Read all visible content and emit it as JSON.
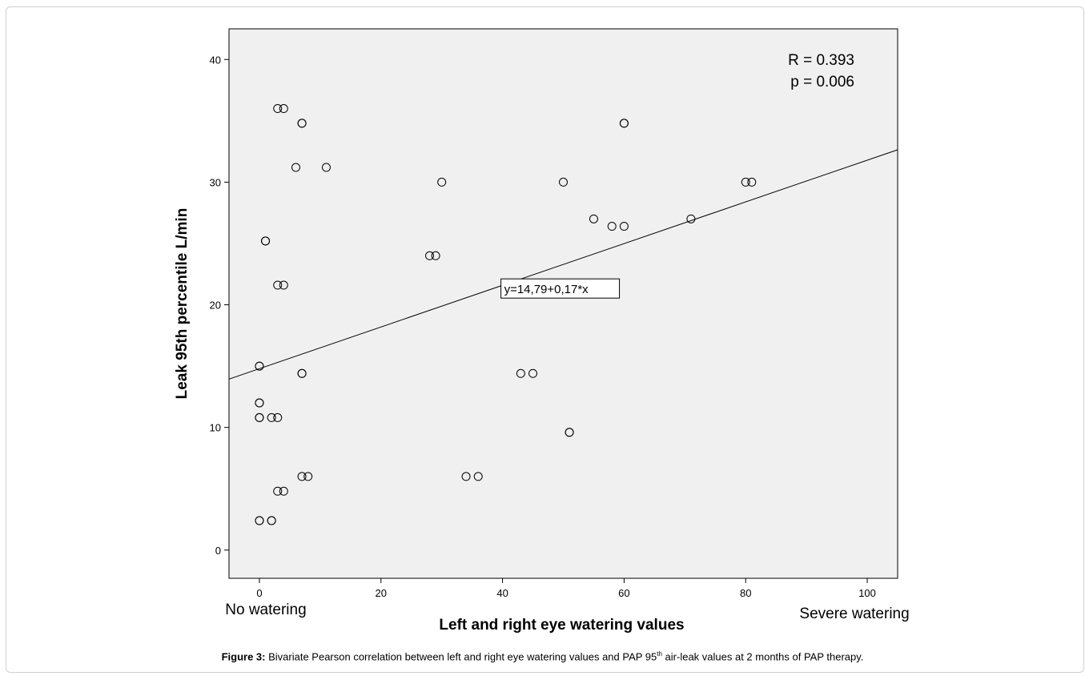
{
  "chart_data": {
    "type": "scatter",
    "xlabel": "Left and right eye watering values",
    "ylabel": "Leak 95th percentile L/min",
    "xlim": [
      -5,
      105
    ],
    "ylim": [
      -2.3,
      42.5
    ],
    "xticks": [
      0,
      20,
      40,
      60,
      80,
      100
    ],
    "yticks": [
      0,
      10,
      20,
      30,
      40
    ],
    "x_end_labels": {
      "left": "No watering",
      "right": "Severe watering"
    },
    "stats": {
      "r": "R = 0.393",
      "p": "p = 0.006"
    },
    "fit_line": {
      "intercept": 14.79,
      "slope": 0.17,
      "label": "y=14,79+0,17*x"
    },
    "grid": false,
    "background_color": "#f0f0f0",
    "marker": "open-circle",
    "points": [
      [
        0,
        2.4
      ],
      [
        0,
        2.4
      ],
      [
        2,
        2.4
      ],
      [
        2,
        2.4
      ],
      [
        3,
        4.8
      ],
      [
        4,
        4.8
      ],
      [
        7,
        6.0
      ],
      [
        8,
        6.0
      ],
      [
        34,
        6.0
      ],
      [
        36,
        6.0
      ],
      [
        51,
        9.6
      ],
      [
        51,
        9.6
      ],
      [
        0,
        10.8
      ],
      [
        0,
        10.8
      ],
      [
        2,
        10.8
      ],
      [
        3,
        10.8
      ],
      [
        0,
        12.0
      ],
      [
        0,
        12.0
      ],
      [
        7,
        14.4
      ],
      [
        7,
        14.4
      ],
      [
        43,
        14.4
      ],
      [
        45,
        14.4
      ],
      [
        0,
        15.0
      ],
      [
        0,
        15.0
      ],
      [
        3,
        21.6
      ],
      [
        4,
        21.6
      ],
      [
        28,
        24.0
      ],
      [
        29,
        24.0
      ],
      [
        1,
        25.2
      ],
      [
        1,
        25.2
      ],
      [
        58,
        26.4
      ],
      [
        60,
        26.4
      ],
      [
        55,
        27.0
      ],
      [
        71,
        27.0
      ],
      [
        30,
        30.0
      ],
      [
        50,
        30.0
      ],
      [
        80,
        30.0
      ],
      [
        81,
        30.0
      ],
      [
        6,
        31.2
      ],
      [
        11,
        31.2
      ],
      [
        7,
        34.8
      ],
      [
        7,
        34.8
      ],
      [
        60,
        34.8
      ],
      [
        60,
        34.8
      ],
      [
        3,
        36.0
      ],
      [
        4,
        36.0
      ]
    ]
  },
  "caption": {
    "label": "Figure 3:",
    "text_before_sup": "Bivariate Pearson correlation between left and right eye watering values and PAP 95",
    "sup": "th",
    "text_after_sup": " air-leak values at 2 months of PAP therapy."
  }
}
